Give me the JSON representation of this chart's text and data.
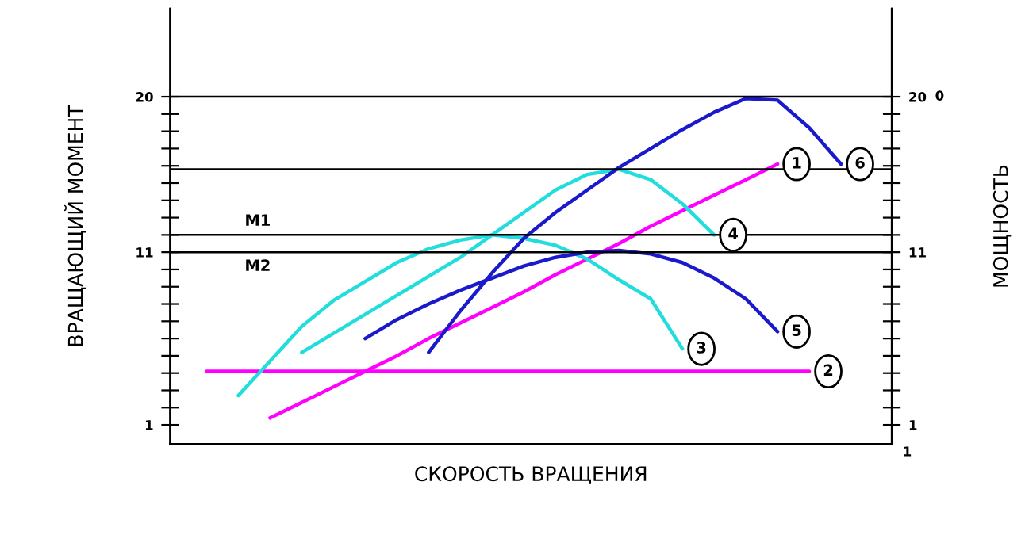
{
  "chart_data": {
    "type": "line",
    "xlabel": "СКОРОСТЬ ВРАЩЕНИЯ",
    "ylabel": "ВРАЩАЮЩИЙ МОМЕНТ",
    "y2label": "МОЩНОСТЬ",
    "categories": [
      null,
      null,
      null,
      null,
      null,
      null,
      null,
      null,
      null,
      null,
      null,
      null,
      null,
      null,
      null,
      null,
      null,
      null,
      null,
      null,
      null,
      null,
      null
    ],
    "series": [
      {
        "name": "1",
        "color": "#ff00ff",
        "values": [
          null,
          null,
          null,
          1.4,
          2.3,
          3.2,
          4.1,
          5.0,
          6.0,
          6.9,
          7.8,
          8.7,
          9.7,
          10.6,
          11.5,
          12.5,
          13.4,
          14.3,
          15.2,
          16.1,
          null,
          null,
          null
        ]
      },
      {
        "name": "2",
        "color": "#ff00ff",
        "values": [
          null,
          4.1,
          4.1,
          4.1,
          4.1,
          4.1,
          4.1,
          4.1,
          4.1,
          4.1,
          4.1,
          4.1,
          4.1,
          4.1,
          4.1,
          4.1,
          4.1,
          4.1,
          4.1,
          4.1,
          4.1,
          null,
          null
        ]
      },
      {
        "name": "3",
        "color": "#22dddd",
        "values": [
          null,
          null,
          2.7,
          4.7,
          6.7,
          8.2,
          9.3,
          10.4,
          11.2,
          11.7,
          12.0,
          11.8,
          11.4,
          10.6,
          9.4,
          8.3,
          5.4,
          null,
          null,
          null,
          null,
          null,
          null
        ]
      },
      {
        "name": "4",
        "color": "#22dddd",
        "values": [
          null,
          null,
          null,
          null,
          5.2,
          6.3,
          7.4,
          8.5,
          9.6,
          10.7,
          12.0,
          13.3,
          14.6,
          15.5,
          15.8,
          15.2,
          13.8,
          12.0,
          null,
          null,
          null,
          null,
          null
        ]
      },
      {
        "name": "5",
        "color": "#1a1acc",
        "values": [
          null,
          null,
          null,
          null,
          null,
          null,
          6.0,
          7.1,
          8.0,
          8.8,
          9.5,
          10.2,
          10.7,
          11.0,
          11.1,
          10.9,
          10.4,
          9.5,
          8.3,
          6.4,
          null,
          null,
          null
        ]
      },
      {
        "name": "6",
        "color": "#1a1acc",
        "values": [
          null,
          null,
          null,
          null,
          null,
          null,
          null,
          null,
          5.2,
          7.6,
          9.8,
          11.8,
          13.3,
          14.6,
          15.9,
          17.0,
          18.1,
          19.1,
          19.9,
          19.8,
          18.2,
          16.1,
          null
        ]
      }
    ],
    "ylim": [
      -0.1,
      25.1
    ],
    "yticks": [
      1,
      {
        "value": 2,
        "label": null
      },
      {
        "value": 3,
        "label": null
      },
      {
        "value": 4,
        "label": null
      },
      {
        "value": 5,
        "label": null
      },
      {
        "value": 6,
        "label": null
      },
      {
        "value": 7,
        "label": null
      },
      {
        "value": 8,
        "label": null
      },
      {
        "value": 9,
        "label": null
      },
      {
        "value": 10,
        "label": null
      },
      11,
      {
        "value": 12,
        "label": null
      },
      {
        "value": 13,
        "label": null
      },
      {
        "value": 14,
        "label": null
      },
      {
        "value": 15,
        "label": null
      },
      {
        "value": 16,
        "label": null
      },
      {
        "value": 17,
        "label": null
      },
      {
        "value": 18,
        "label": null
      },
      {
        "value": 19,
        "label": null
      },
      20
    ],
    "y2lim": [
      -0.1,
      25.1
    ],
    "y2ticks": [
      1,
      {
        "value": 2,
        "label": null
      },
      {
        "value": 3,
        "label": null
      },
      {
        "value": 4,
        "label": null
      },
      {
        "value": 5,
        "label": null
      },
      {
        "value": 6,
        "label": null
      },
      {
        "value": 7,
        "label": null
      },
      {
        "value": 8,
        "label": null
      },
      {
        "value": 9,
        "label": null
      },
      {
        "value": 10,
        "label": null
      },
      11,
      {
        "value": 12,
        "label": null
      },
      {
        "value": 13,
        "label": null
      },
      {
        "value": 14,
        "label": null
      },
      {
        "value": 15,
        "label": null
      },
      {
        "value": 16,
        "label": null
      },
      {
        "value": 17,
        "label": null
      },
      {
        "value": 18,
        "label": null
      },
      {
        "value": 19,
        "label": null
      },
      20
    ],
    "ref_lines": [
      {
        "axis": "y",
        "value": 12.0,
        "label": "M1",
        "color": "#000000"
      },
      {
        "axis": "y",
        "value": 11.0,
        "label": "M2",
        "color": "#000000"
      },
      {
        "axis": "y",
        "value": 15.8,
        "label": null,
        "color": "#000000"
      },
      {
        "axis": "y",
        "value": 20.0,
        "label": null,
        "color": "#000000"
      }
    ],
    "annotations": [
      "0",
      "1"
    ],
    "marker": "none",
    "line_style": "solid",
    "tick_labels": "y"
  }
}
